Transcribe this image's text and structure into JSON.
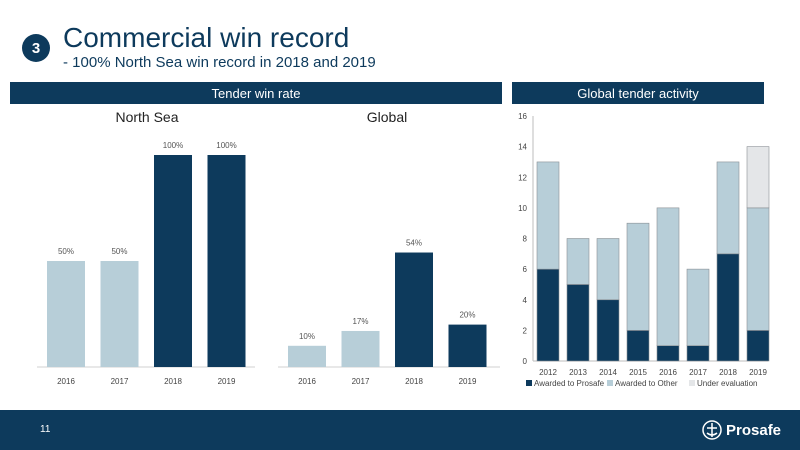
{
  "header": {
    "section_number": "3",
    "title": "Commercial win record",
    "subtitle": "- 100% North Sea win record in 2018 and 2019"
  },
  "banners": {
    "left": "Tender win rate",
    "right": "Global tender activity"
  },
  "footer": {
    "page_number": "11",
    "brand": "Prosafe"
  },
  "colors": {
    "navy": "#0d3a5c",
    "light_blue": "#b7ced8",
    "very_light": "#e4e6e8"
  },
  "chart_data": [
    {
      "type": "bar",
      "title": "North Sea",
      "categories": [
        "2016",
        "2017",
        "2018",
        "2019"
      ],
      "values": [
        50,
        50,
        100,
        100
      ],
      "data_labels": [
        "50%",
        "50%",
        "100%",
        "100%"
      ],
      "bar_colors": [
        "#b7ced8",
        "#b7ced8",
        "#0d3a5c",
        "#0d3a5c"
      ],
      "ylim": [
        0,
        100
      ],
      "grid": false
    },
    {
      "type": "bar",
      "title": "Global",
      "categories": [
        "2016",
        "2017",
        "2018",
        "2019"
      ],
      "values": [
        10,
        17,
        54,
        20
      ],
      "data_labels": [
        "10%",
        "17%",
        "54%",
        "20%"
      ],
      "bar_colors": [
        "#b7ced8",
        "#b7ced8",
        "#0d3a5c",
        "#0d3a5c"
      ],
      "ylim": [
        0,
        100
      ],
      "grid": false
    },
    {
      "type": "bar",
      "stacked": true,
      "categories": [
        "2012",
        "2013",
        "2014",
        "2015",
        "2016",
        "2017",
        "2018",
        "2019"
      ],
      "series": [
        {
          "name": "Awarded to Prosafe",
          "values": [
            6,
            5,
            4,
            2,
            1,
            1,
            7,
            2
          ],
          "color": "#0d3a5c"
        },
        {
          "name": "Awarded to Other",
          "values": [
            7,
            3,
            4,
            7,
            9,
            5,
            6,
            8
          ],
          "color": "#b7ced8"
        },
        {
          "name": "Under evaluation",
          "values": [
            0,
            0,
            0,
            0,
            0,
            0,
            0,
            4
          ],
          "color": "#e4e6e8"
        }
      ],
      "ylim": [
        0,
        16
      ],
      "yticks": [
        "0",
        "2",
        "4",
        "6",
        "8",
        "10",
        "12",
        "14",
        "16"
      ],
      "legend": "bottom",
      "grid": false
    }
  ]
}
